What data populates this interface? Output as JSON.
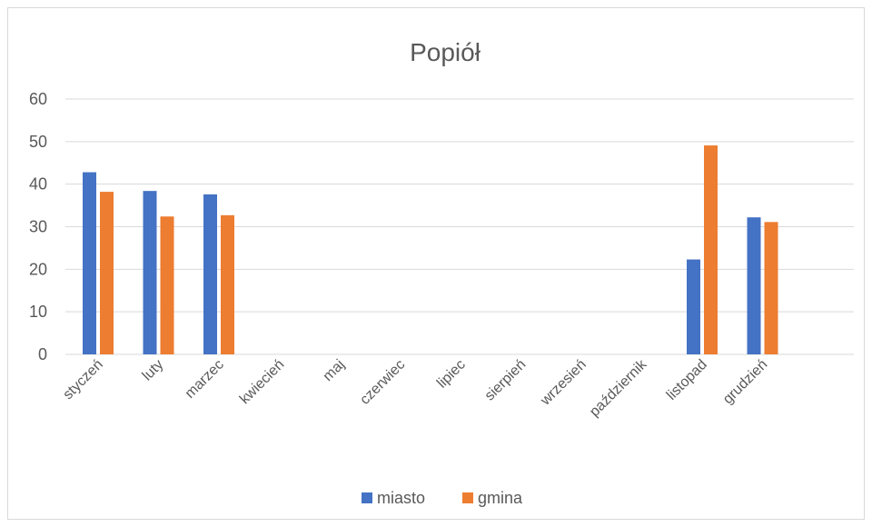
{
  "chart_data": {
    "type": "bar",
    "title": "Popiół",
    "categories": [
      "styczeń",
      "luty",
      "marzec",
      "kwiecień",
      "maj",
      "czerwiec",
      "lipiec",
      "sierpień",
      "wrzesień",
      "październik",
      "listopad",
      "grudzień"
    ],
    "series": [
      {
        "name": "miasto",
        "color": "#4472c4",
        "values": [
          42.8,
          38.4,
          37.6,
          0,
          0,
          0,
          0,
          0,
          0,
          0,
          22.3,
          32.2
        ]
      },
      {
        "name": "gmina",
        "color": "#ed7d31",
        "values": [
          38.2,
          32.4,
          32.7,
          0,
          0,
          0,
          0,
          0,
          0,
          0,
          49.1,
          31.1
        ]
      }
    ],
    "ylim": [
      0,
      60
    ],
    "yticks": [
      0,
      10,
      20,
      30,
      40,
      50,
      60
    ],
    "grid": true,
    "legend": "bottom"
  }
}
